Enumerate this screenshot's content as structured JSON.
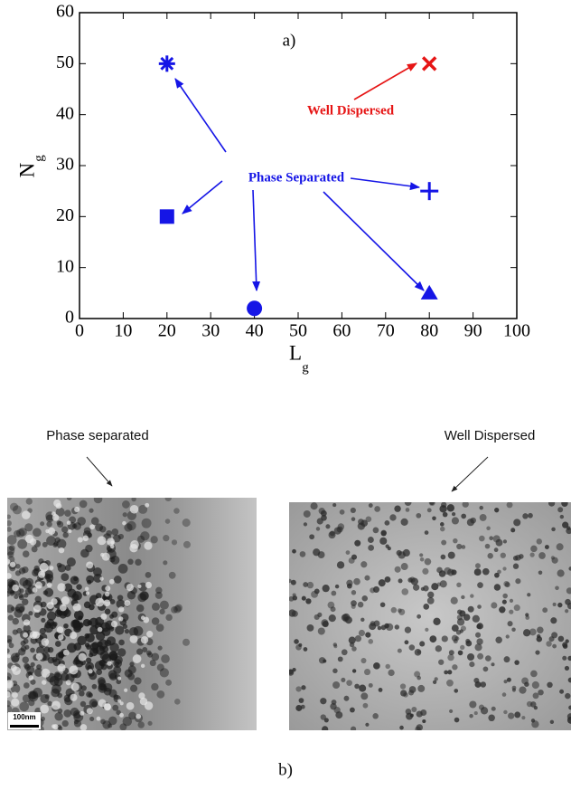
{
  "chart_data": {
    "type": "scatter",
    "title": "a)",
    "xlabel": {
      "text": "L",
      "subscript": "g"
    },
    "ylabel": {
      "text": "N",
      "subscript": "g"
    },
    "xlim": [
      0,
      100
    ],
    "xticks": [
      0,
      10,
      20,
      30,
      40,
      50,
      60,
      70,
      80,
      90,
      100
    ],
    "ylim": [
      0,
      60
    ],
    "yticks": [
      0,
      10,
      20,
      30,
      40,
      50,
      60
    ],
    "points": [
      {
        "x": 20,
        "y": 50,
        "marker": "asterisk",
        "color": "#1515e6"
      },
      {
        "x": 80,
        "y": 50,
        "marker": "x",
        "color": "#e61515"
      },
      {
        "x": 80,
        "y": 25,
        "marker": "plus",
        "color": "#1515e6"
      },
      {
        "x": 20,
        "y": 20,
        "marker": "square",
        "color": "#1515e6"
      },
      {
        "x": 40,
        "y": 2,
        "marker": "circle",
        "color": "#1515e6"
      },
      {
        "x": 80,
        "y": 5,
        "marker": "triangle",
        "color": "#1515e6"
      }
    ],
    "annotations": [
      "Well Dispersed",
      "Phase Separated"
    ]
  },
  "figure_b": {
    "label": "b)",
    "left_caption": "Phase separated",
    "right_caption": "Well Dispersed",
    "scale_bar": "100nm"
  }
}
